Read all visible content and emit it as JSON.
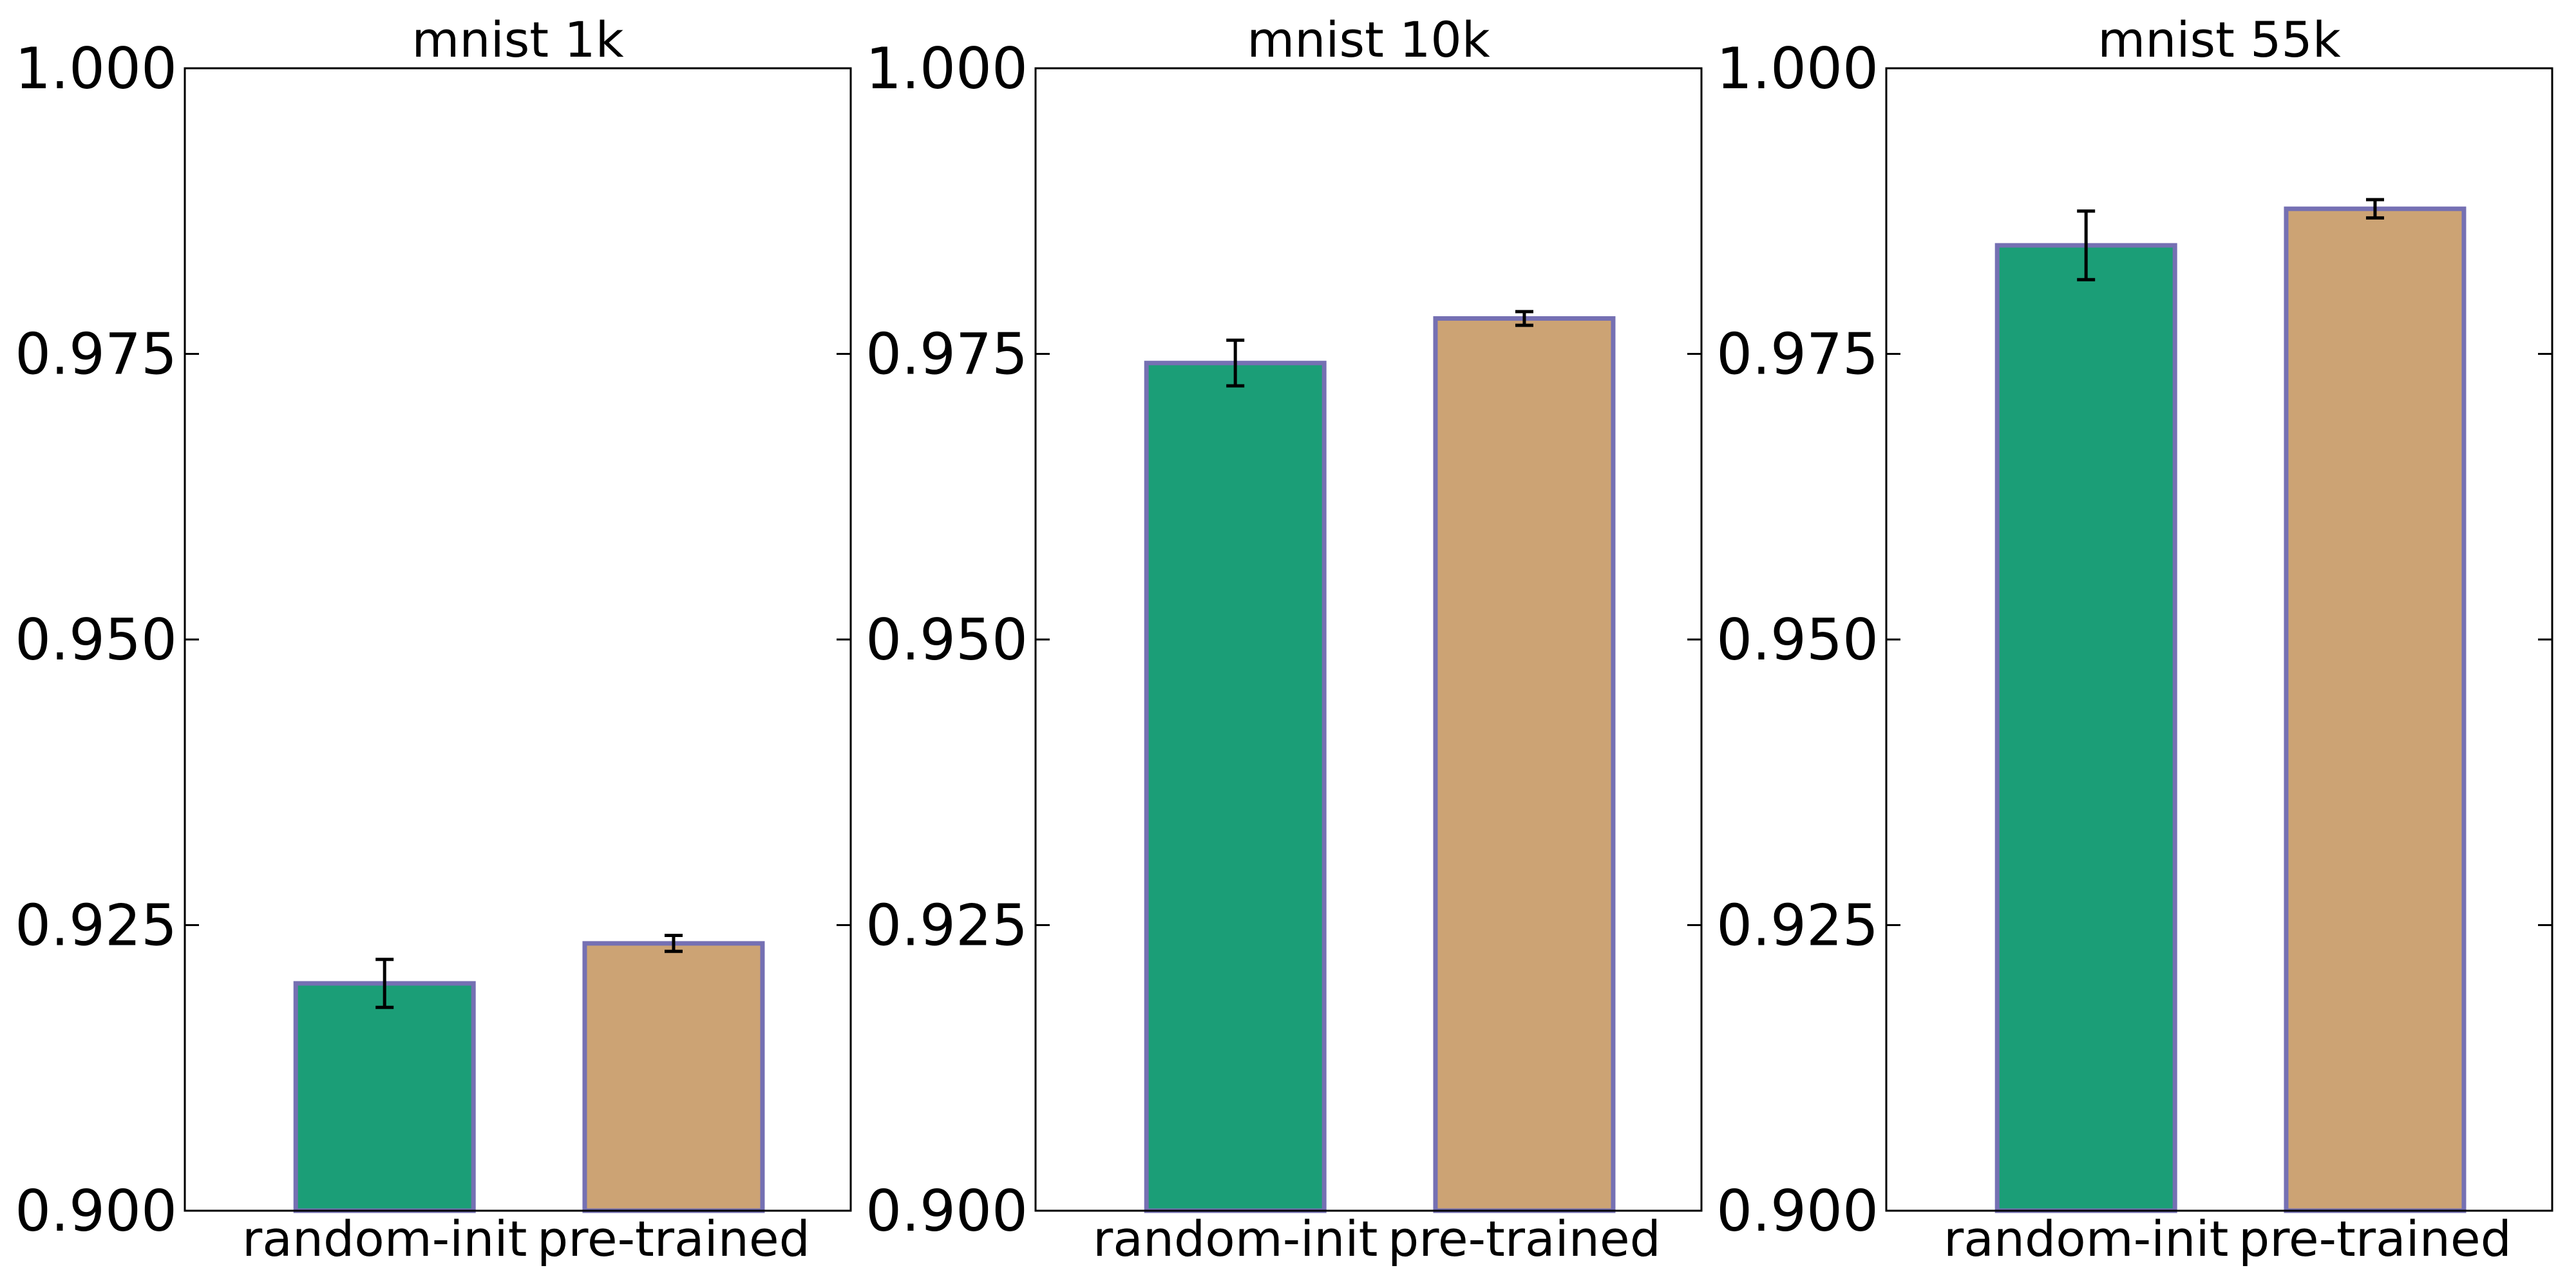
{
  "chart_data": [
    {
      "type": "bar",
      "title": "mnist 1k",
      "categories": [
        "random-init",
        "pre-trained"
      ],
      "values": [
        0.9199,
        0.9234
      ],
      "errors": [
        0.0021,
        0.0007
      ],
      "bar_colors": [
        "#1b9e77",
        "#cca374"
      ],
      "edge_color": "#7570b3",
      "ylim": [
        0.9,
        1.0
      ],
      "yticks": [
        "0.900",
        "0.925",
        "0.950",
        "0.975",
        "1.000"
      ],
      "xlabel": "",
      "ylabel": "",
      "grid": false
    },
    {
      "type": "bar",
      "title": "mnist 10k",
      "categories": [
        "random-init",
        "pre-trained"
      ],
      "values": [
        0.9742,
        0.9781
      ],
      "errors": [
        0.002,
        0.0006
      ],
      "bar_colors": [
        "#1b9e77",
        "#cca374"
      ],
      "edge_color": "#7570b3",
      "ylim": [
        0.9,
        1.0
      ],
      "yticks": [
        "0.900",
        "0.925",
        "0.950",
        "0.975",
        "1.000"
      ],
      "xlabel": "",
      "ylabel": "",
      "grid": false
    },
    {
      "type": "bar",
      "title": "mnist 55k",
      "categories": [
        "random-init",
        "pre-trained"
      ],
      "values": [
        0.9845,
        0.9877
      ],
      "errors": [
        0.003,
        0.0008
      ],
      "bar_colors": [
        "#1b9e77",
        "#cca374"
      ],
      "edge_color": "#7570b3",
      "ylim": [
        0.9,
        1.0
      ],
      "yticks": [
        "0.900",
        "0.925",
        "0.950",
        "0.975",
        "1.000"
      ],
      "xlabel": "",
      "ylabel": "",
      "grid": false
    }
  ]
}
